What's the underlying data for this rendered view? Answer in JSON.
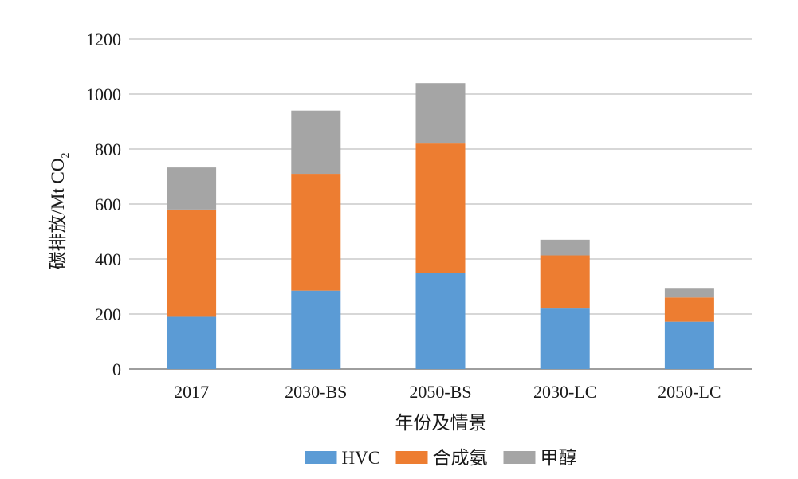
{
  "chart_data": {
    "type": "bar",
    "stacked": true,
    "categories": [
      "2017",
      "2030-BS",
      "2050-BS",
      "2030-LC",
      "2050-LC"
    ],
    "series": [
      {
        "name": "HVC",
        "color": "#5b9bd5",
        "values": [
          190,
          285,
          350,
          220,
          172
        ]
      },
      {
        "name": "合成氨",
        "color": "#ed7d31",
        "values": [
          390,
          425,
          470,
          193,
          88
        ]
      },
      {
        "name": "甲醇",
        "color": "#a5a5a5",
        "values": [
          153,
          230,
          220,
          57,
          35
        ]
      }
    ],
    "ylabel_main": "碳排放/Mt CO",
    "ylabel_sub": "2",
    "xlabel": "年份及情景",
    "ylim": [
      0,
      1200
    ],
    "yticks": [
      "0",
      "200",
      "400",
      "600",
      "800",
      "1000",
      "1200"
    ],
    "grid": true,
    "legend_position": "bottom"
  }
}
